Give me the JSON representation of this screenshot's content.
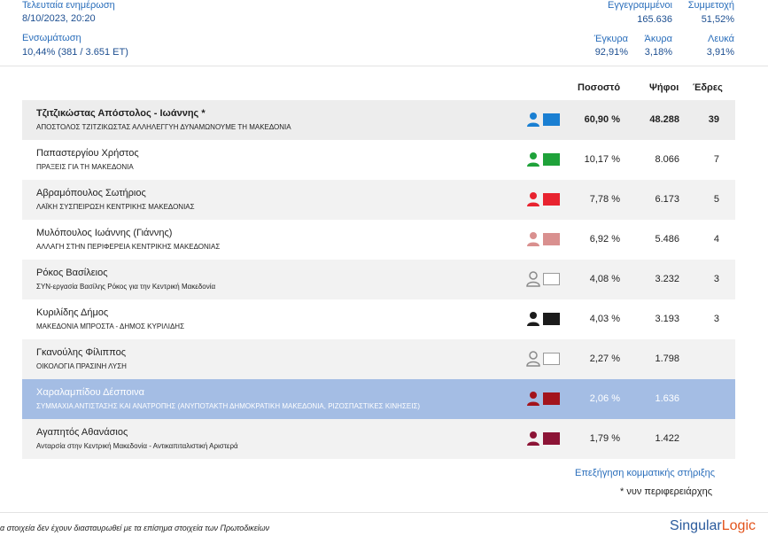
{
  "header": {
    "last_update_label": "Τελευταία ενημέρωση",
    "last_update_value": "8/10/2023, 20:20",
    "integration_label": "Ενσωμάτωση",
    "integration_value": "10,44% (381 / 3.651 ΕΤ)",
    "registered_label": "Εγγεγραμμένοι",
    "registered_value": "165.636",
    "turnout_label": "Συμμετοχή",
    "turnout_value": "51,52%",
    "valid_label": "Έγκυρα",
    "valid_value": "92,91%",
    "invalid_label": "Άκυρα",
    "invalid_value": "3,18%",
    "blank_label": "Λευκά",
    "blank_value": "3,91%"
  },
  "table": {
    "col_percent": "Ποσοστό",
    "col_votes": "Ψήφοι",
    "col_seats": "Έδρες",
    "rows": [
      {
        "name": "Τζιτζικώστας Απόστολος - Ιωάννης *",
        "party": "ΑΠΟΣΤΟΛΟΣ ΤΖΙΤΖΙΚΩΣΤΑΣ ΑΛΛΗΛΕΓΓΥΗ ΔΥΝΑΜΩΝΟΥΜΕ ΤΗ ΜΑΚΕΔΟΝΙΑ",
        "percent": "60,90 %",
        "votes": "48.288",
        "seats": "39",
        "color": "#1a7fd2",
        "icon": "person-icon"
      },
      {
        "name": "Παπαστεργίου Χρήστος",
        "party": "ΠΡΑΞΕΙΣ ΓΙΑ ΤΗ ΜΑΚΕΔΟΝΙΑ",
        "percent": "10,17 %",
        "votes": "8.066",
        "seats": "7",
        "color": "#1fa23a",
        "icon": "person-icon"
      },
      {
        "name": "Αβραμόπουλος Σωτήριος",
        "party": "ΛΑΪΚΗ ΣΥΣΠΕΙΡΩΣΗ ΚΕΝΤΡΙΚΗΣ ΜΑΚΕΔΟΝΙΑΣ",
        "percent": "7,78 %",
        "votes": "6.173",
        "seats": "5",
        "color": "#e8232f",
        "icon": "person-icon"
      },
      {
        "name": "Μυλόπουλος Ιωάννης (Γιάννης)",
        "party": "ΑΛΛΑΓΗ ΣΤΗΝ ΠΕΡΙΦΕΡΕΙΑ ΚΕΝΤΡΙΚΗΣ ΜΑΚΕΔΟΝΙΑΣ",
        "percent": "6,92 %",
        "votes": "5.486",
        "seats": "4",
        "color": "#d9908f",
        "icon": "person-icon"
      },
      {
        "name": "Ρόκος Βασίλειος",
        "party": "ΣΥΝ-εργασία Βασίλης Ρόκος για την Κεντρική Μακεδονία",
        "percent": "4,08 %",
        "votes": "3.232",
        "seats": "3",
        "color": "#ffffff",
        "icon": "person-outline-icon"
      },
      {
        "name": "Κυριλίδης Δήμος",
        "party": "ΜΑΚΕΔΟΝΙΑ ΜΠΡΟΣΤΑ - ΔΗΜΟΣ ΚΥΡΙΛΙΔΗΣ",
        "percent": "4,03 %",
        "votes": "3.193",
        "seats": "3",
        "color": "#1c1c1c",
        "icon": "person-icon"
      },
      {
        "name": "Γκανούλης Φίλιππος",
        "party": "ΟΙΚΟΛΟΓΙΑ ΠΡΑΣΙΝΗ ΛΥΣΗ",
        "percent": "2,27 %",
        "votes": "1.798",
        "seats": "",
        "color": "#ffffff",
        "icon": "person-outline-icon"
      },
      {
        "name": "Χαραλαμπίδου Δέσποινα",
        "party": "ΣΥΜΜΑΧΙΑ ΑΝΤΙΣΤΑΣΗΣ ΚΑΙ ΑΝΑΤΡΟΠΗΣ (ΑΝΥΠΟΤΑΚΤΗ ΔΗΜΟΚΡΑΤΙΚΗ ΜΑΚΕΔΟΝΙΑ, ΡΙΖΟΣΠΑΣΤΙΚΕΣ ΚΙΝΗΣΕΙΣ)",
        "percent": "2,06 %",
        "votes": "1.636",
        "seats": "",
        "color": "#a3141c",
        "icon": "person-icon"
      },
      {
        "name": "Αγαπητός Αθανάσιος",
        "party": "Ανταρσία στην Κεντρική Μακεδονία - Αντικαπιταλιστική Αριστερά",
        "percent": "1,79 %",
        "votes": "1.422",
        "seats": "",
        "color": "#8c1436",
        "icon": "person-icon"
      }
    ]
  },
  "links": {
    "explanation": "Επεξήγηση κομματικής στήριξης",
    "note": "* νυν περιφερειάρχης"
  },
  "footer": {
    "disclaimer": "α στοιχεία δεν έχουν διασταυρωθεί με τα επίσημα στοιχεία των Πρωτοδικείων",
    "logo_part1": "Singular",
    "logo_part2": "Logic"
  }
}
